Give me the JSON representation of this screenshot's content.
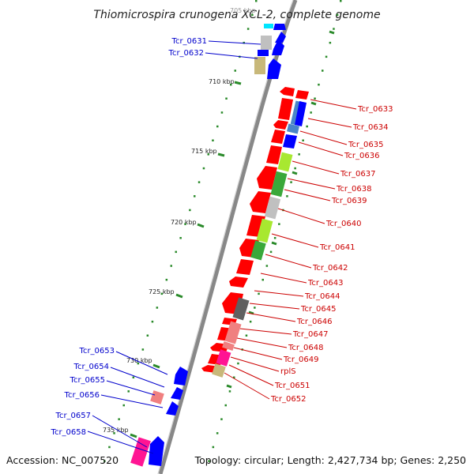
{
  "header": {
    "title": "Thiomicrospira crunogena XCL-2, complete genome"
  },
  "footer": {
    "accession": "Accession: NC_007520",
    "topology": "Topology: circular; Length: 2,427,734 bp; Genes: 2,250"
  },
  "ruler": {
    "partial_top": "705 kbp",
    "ticks": [
      "710 kbp",
      "715 kbp",
      "720 kbp",
      "725 kbp",
      "730 kbp",
      "735 kbp"
    ]
  },
  "colors": {
    "left_label": "#0000cc",
    "right_label": "#cc0000",
    "backbone": "#888888",
    "tick": "#2a8a2a",
    "red": "#ff0000",
    "blue": "#0000ff",
    "steelblue": "#4a86c8",
    "tan": "#c8b87a",
    "grey": "#c0c0c0",
    "darkgrey": "#606060",
    "pink": "#f08080",
    "magenta": "#ff1493",
    "lime": "#a8e830",
    "green": "#3aa83a",
    "cyan": "#00e5ff"
  },
  "left_labels": [
    "Tcr_0631",
    "Tcr_0632",
    "Tcr_0653",
    "Tcr_0654",
    "Tcr_0655",
    "Tcr_0656",
    "Tcr_0657",
    "Tcr_0658"
  ],
  "right_labels": [
    "Tcr_0633",
    "Tcr_0634",
    "Tcr_0635",
    "Tcr_0636",
    "Tcr_0637",
    "Tcr_0638",
    "Tcr_0639",
    "Tcr_0640",
    "Tcr_0641",
    "Tcr_0642",
    "Tcr_0643",
    "Tcr_0644",
    "Tcr_0645",
    "Tcr_0646",
    "Tcr_0647",
    "Tcr_0648",
    "Tcr_0649",
    "rplS",
    "Tcr_0651",
    "Tcr_0652"
  ]
}
